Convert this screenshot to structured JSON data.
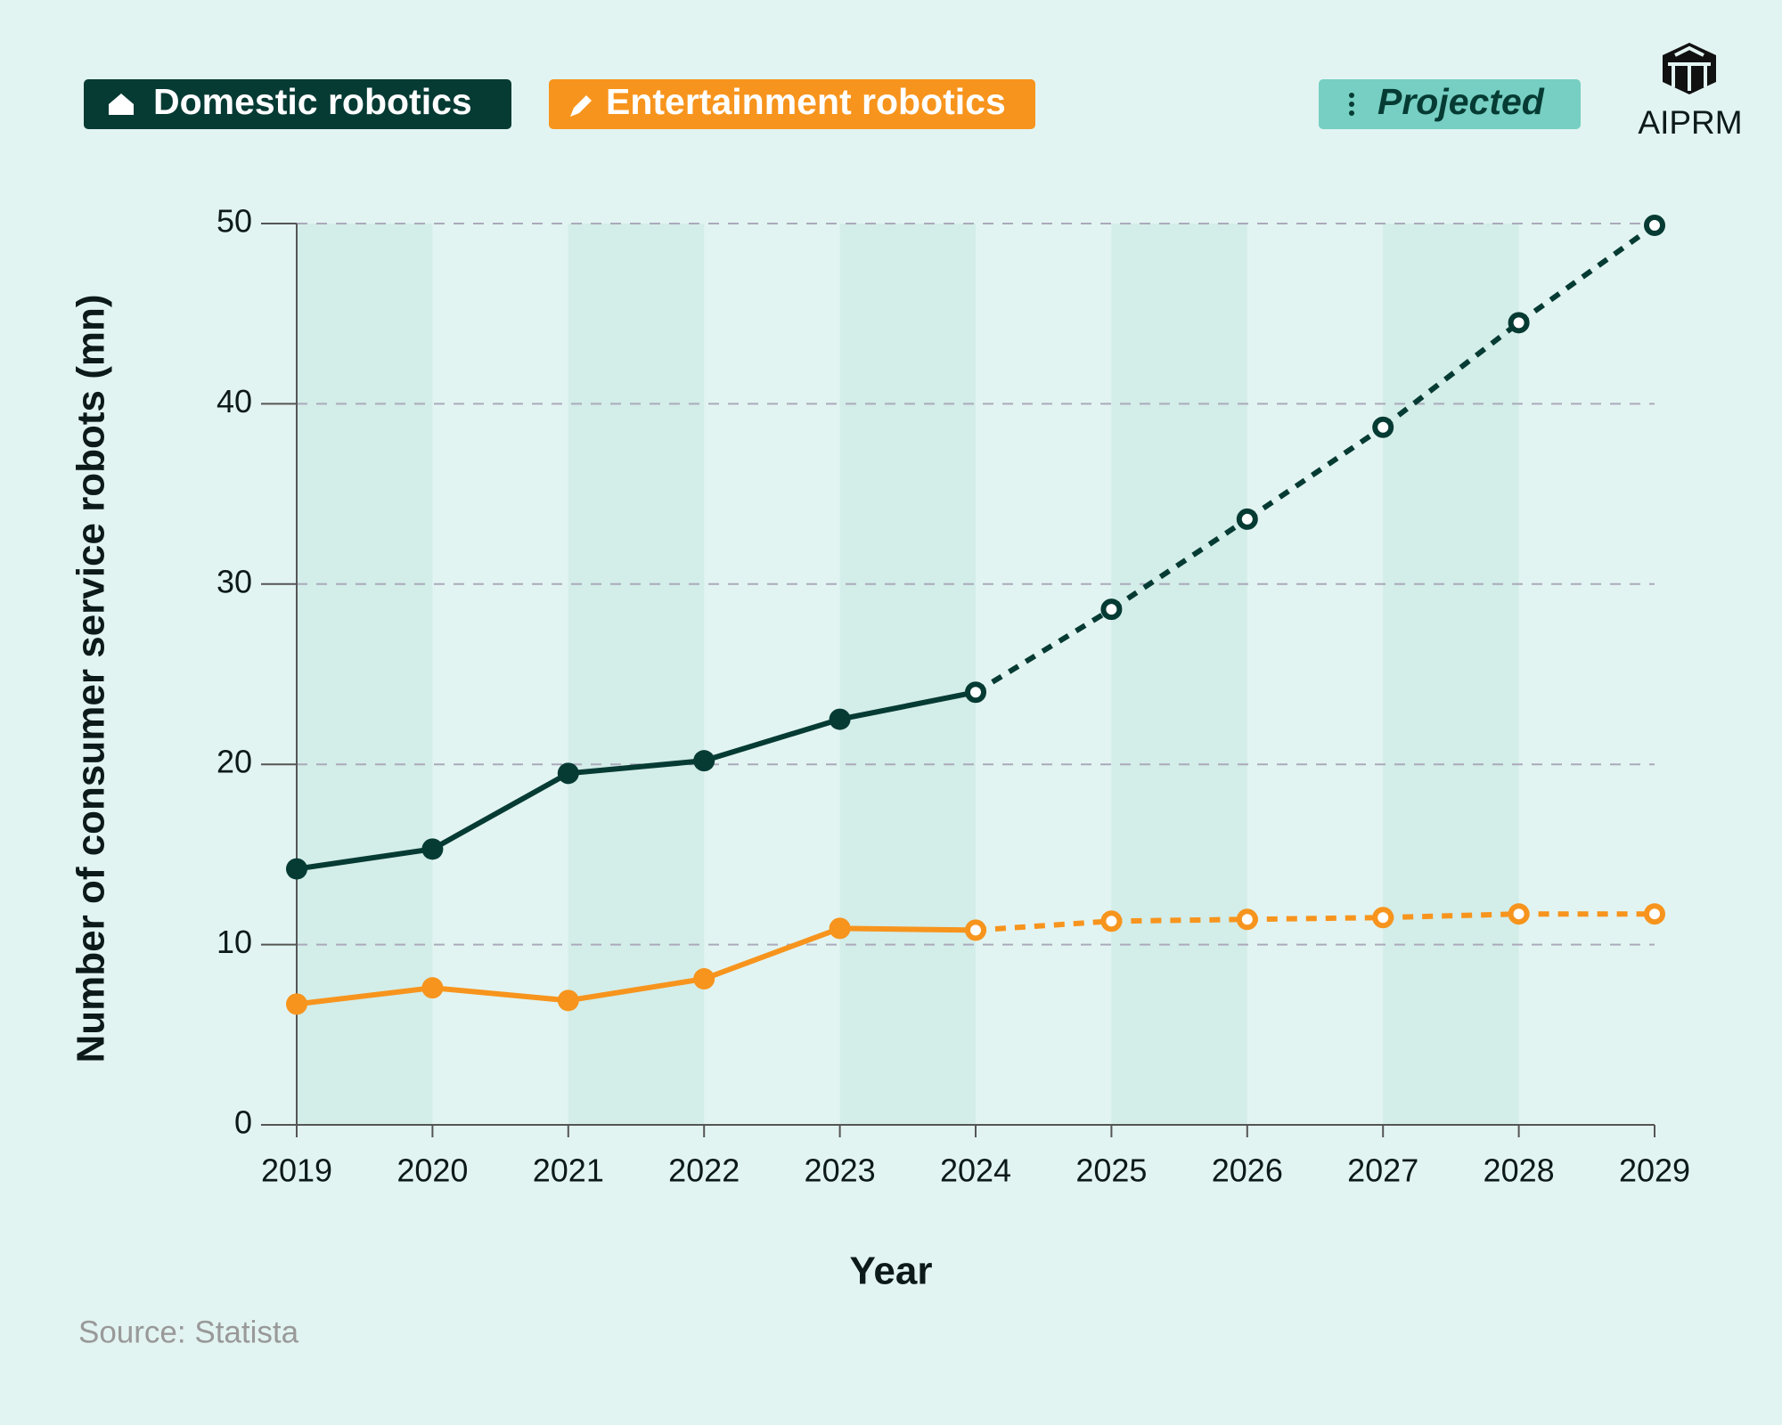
{
  "chart_data": {
    "type": "line",
    "x_label": "Year",
    "y_label": "Number of consumer service robots (mn)",
    "source": "Source: Statista",
    "brand": "AIPRM",
    "projected_label": "Projected",
    "projected_from": "2024",
    "categories": [
      "2019",
      "2020",
      "2021",
      "2022",
      "2023",
      "2024",
      "2025",
      "2026",
      "2027",
      "2028",
      "2029"
    ],
    "series": [
      {
        "name": "Domestic robotics",
        "color": "#063b34",
        "values": [
          14.2,
          15.3,
          19.5,
          20.2,
          22.5,
          24.0,
          28.6,
          33.6,
          38.7,
          44.5,
          49.9
        ]
      },
      {
        "name": "Entertainment robotics",
        "color": "#f7941d",
        "values": [
          6.7,
          7.6,
          6.9,
          8.1,
          10.9,
          10.8,
          11.3,
          11.4,
          11.5,
          11.7,
          11.7
        ]
      }
    ],
    "ylim": [
      0,
      50
    ],
    "yticks": [
      0,
      10,
      20,
      30,
      40,
      50
    ],
    "grid": true
  }
}
